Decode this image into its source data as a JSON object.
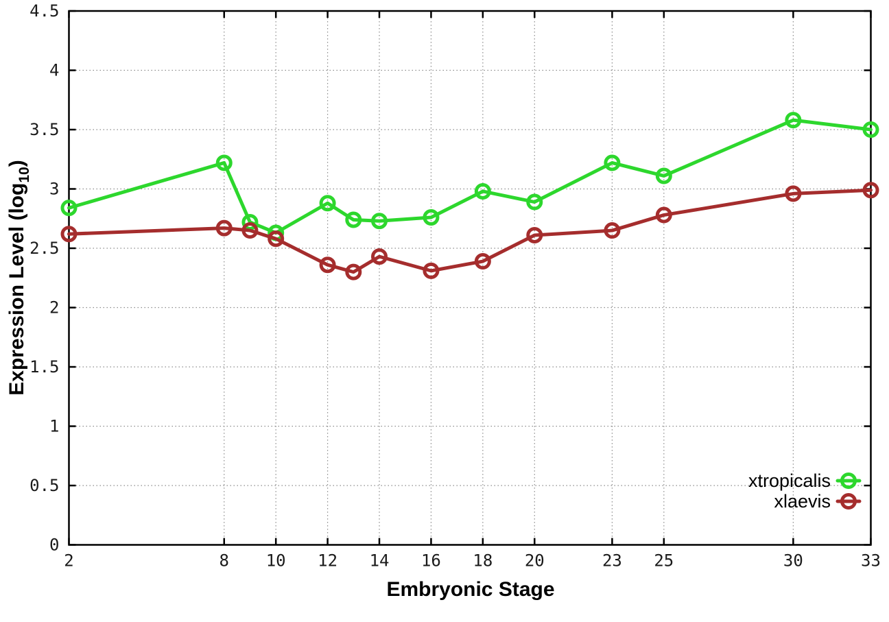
{
  "chart_data": {
    "type": "line",
    "title": "",
    "xlabel": "Embryonic Stage",
    "ylabel": "Expression Level (log10)",
    "ylabel_parts": {
      "main": "Expression Level (log",
      "sub": "10",
      "close": ")"
    },
    "xlim": [
      2,
      33
    ],
    "ylim": [
      0,
      4.5
    ],
    "x_ticks": [
      2,
      8,
      10,
      12,
      14,
      16,
      18,
      20,
      23,
      25,
      30,
      33
    ],
    "x_tick_labels": [
      "2",
      "8",
      "10",
      "12",
      "14",
      "16",
      "18",
      "20",
      "23",
      "25",
      "30",
      "33"
    ],
    "y_ticks": [
      0,
      0.5,
      1,
      1.5,
      2,
      2.5,
      3,
      3.5,
      4,
      4.5
    ],
    "y_tick_labels": [
      "0",
      "0.5",
      "1",
      "1.5",
      "2",
      "2.5",
      "3",
      "3.5",
      "4",
      "4.5"
    ],
    "grid": true,
    "legend_position": "inside-bottom-right",
    "x": [
      2,
      8,
      9,
      10,
      12,
      13,
      14,
      16,
      18,
      20,
      23,
      25,
      30,
      33
    ],
    "series": [
      {
        "name": "xtropicalis",
        "color": "#2dd72d",
        "marker": "open-circle",
        "values": [
          2.84,
          3.22,
          2.72,
          2.63,
          2.88,
          2.74,
          2.73,
          2.76,
          2.98,
          2.89,
          3.22,
          3.11,
          3.58,
          3.5
        ]
      },
      {
        "name": "xlaevis",
        "color": "#a52d2d",
        "marker": "open-circle",
        "values": [
          2.62,
          2.67,
          2.65,
          2.58,
          2.36,
          2.3,
          2.43,
          2.31,
          2.39,
          2.61,
          2.65,
          2.78,
          2.96,
          2.99
        ]
      }
    ]
  },
  "colors": {
    "background": "#ffffff",
    "border": "#000000",
    "grid": "#8a8a8a",
    "text": "#1a1a1a"
  }
}
